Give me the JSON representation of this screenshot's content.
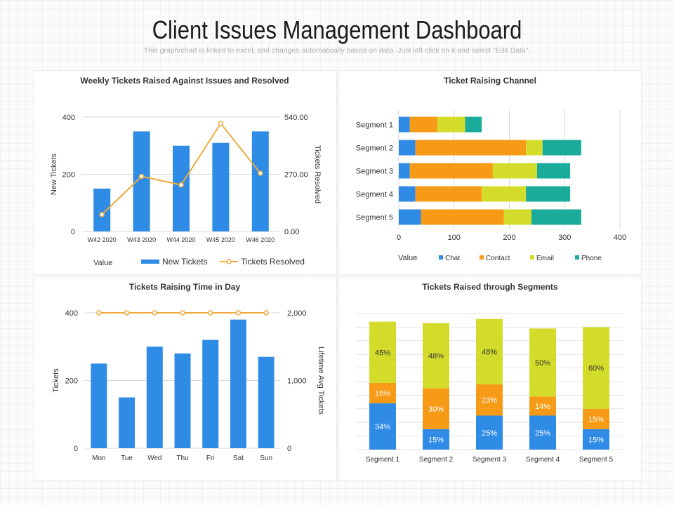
{
  "header": {
    "title": "Client Issues Management  Dashboard",
    "subtitle": "This graph/chart is linked to excel, and changes automatically based on data. Just left click on it and select “Edit Data”."
  },
  "colors": {
    "blue": "#2f8ce6",
    "orange": "#f79a16",
    "yellow": "#d4dc2b",
    "teal": "#1aab9b",
    "line": "#f0a93b",
    "grid": "#d9d9d9",
    "axis_text": "#333333"
  },
  "chart_data": [
    {
      "id": "weekly",
      "type": "bar",
      "title": "Weekly Tickets Raised Against Issues and Resolved",
      "categories": [
        "W42 2020",
        "W43 2020",
        "W44 2020",
        "W45 2020",
        "W46 2020"
      ],
      "series": [
        {
          "name": "New Tickets",
          "type": "bar",
          "axis": "left",
          "values": [
            150,
            350,
            300,
            310,
            350
          ]
        },
        {
          "name": "Tickets Resolved",
          "type": "line",
          "axis": "right",
          "values": [
            80,
            260,
            220,
            510,
            275
          ]
        }
      ],
      "ylabel": "New Tickets",
      "y2label": "Tickets Resolved",
      "ylim": [
        0,
        400
      ],
      "y2lim": [
        0,
        540
      ],
      "yticks": [
        "0",
        "200",
        "400"
      ],
      "y2ticks": [
        "0.00",
        "270.00",
        "540.00"
      ],
      "legend_title": "Value",
      "legend": [
        "New Tickets",
        "Tickets Resolved"
      ]
    },
    {
      "id": "channel",
      "type": "bar",
      "orientation": "horizontal",
      "stacked": true,
      "title": "Ticket Raising Channel",
      "categories": [
        "Segment 1",
        "Segment 2",
        "Segment 3",
        "Segment 4",
        "Segment 5"
      ],
      "series": [
        {
          "name": "Chat",
          "values": [
            20,
            30,
            20,
            30,
            40
          ]
        },
        {
          "name": "Contact",
          "values": [
            50,
            200,
            150,
            120,
            150
          ]
        },
        {
          "name": "Email",
          "values": [
            50,
            30,
            80,
            80,
            50
          ]
        },
        {
          "name": "Phone",
          "values": [
            30,
            70,
            60,
            80,
            90
          ]
        }
      ],
      "xlim": [
        0,
        400
      ],
      "xticks": [
        "0",
        "100",
        "200",
        "300",
        "400"
      ],
      "legend_title": "Value",
      "legend": [
        "Chat",
        "Contact",
        "Email",
        "Phone"
      ]
    },
    {
      "id": "time",
      "type": "bar",
      "title": "Tickets Raising Time in Day",
      "categories": [
        "Mon",
        "Tue",
        "Wed",
        "Thu",
        "Fri",
        "Sat",
        "Sun"
      ],
      "series": [
        {
          "name": "Tickets",
          "type": "bar",
          "axis": "left",
          "values": [
            250,
            150,
            300,
            280,
            320,
            380,
            270
          ]
        },
        {
          "name": "Lifetime Avg Tickets",
          "type": "line",
          "axis": "right",
          "values": [
            2000,
            2000,
            2000,
            2000,
            2000,
            2000,
            2000
          ]
        }
      ],
      "ylabel": "Tickets",
      "y2label": "Lifetime Avg Tickets",
      "ylim": [
        0,
        400
      ],
      "y2lim": [
        0,
        2000
      ],
      "yticks": [
        "0",
        "200",
        "400"
      ],
      "y2ticks": [
        "0",
        "1,000",
        "2,000"
      ]
    },
    {
      "id": "segments",
      "type": "bar",
      "stacked": true,
      "title": "Tickets Raised through Segments",
      "categories": [
        "Segment 1",
        "Segment 2",
        "Segment 3",
        "Segment 4",
        "Segment 5"
      ],
      "series": [
        {
          "name": "Blue",
          "values": [
            34,
            15,
            25,
            25,
            15
          ],
          "labels": [
            "34%",
            "15%",
            "25%",
            "25%",
            "15%"
          ]
        },
        {
          "name": "Orange",
          "values": [
            15,
            30,
            23,
            14,
            15
          ],
          "labels": [
            "15%",
            "30%",
            "23%",
            "14%",
            "15%"
          ]
        },
        {
          "name": "Yellow",
          "values": [
            45,
            48,
            48,
            50,
            60
          ],
          "labels": [
            "45%",
            "48%",
            "48%",
            "50%",
            "60%"
          ]
        }
      ],
      "ylim": [
        0,
        100
      ]
    }
  ]
}
